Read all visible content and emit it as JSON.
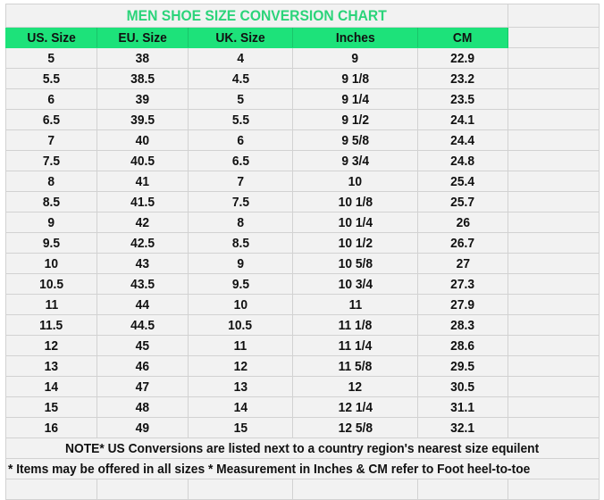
{
  "title": "MEN SHOE SIZE CONVERSION CHART",
  "colors": {
    "header_bg": "#1de27a",
    "title_text": "#2bd47a",
    "cell_bg": "#f2f2f2",
    "grid": "#d2d2d2"
  },
  "headers": [
    "US. Size",
    "EU. Size",
    "UK. Size",
    "Inches",
    "CM"
  ],
  "rows": [
    [
      "5",
      "38",
      "4",
      "9",
      "22.9"
    ],
    [
      "5.5",
      "38.5",
      "4.5",
      "9 1/8",
      "23.2"
    ],
    [
      "6",
      "39",
      "5",
      "9 1/4",
      "23.5"
    ],
    [
      "6.5",
      "39.5",
      "5.5",
      "9 1/2",
      "24.1"
    ],
    [
      "7",
      "40",
      "6",
      "9 5/8",
      "24.4"
    ],
    [
      "7.5",
      "40.5",
      "6.5",
      "9 3/4",
      "24.8"
    ],
    [
      "8",
      "41",
      "7",
      "10",
      "25.4"
    ],
    [
      "8.5",
      "41.5",
      "7.5",
      "10 1/8",
      "25.7"
    ],
    [
      "9",
      "42",
      "8",
      "10 1/4",
      "26"
    ],
    [
      "9.5",
      "42.5",
      "8.5",
      "10 1/2",
      "26.7"
    ],
    [
      "10",
      "43",
      "9",
      "10 5/8",
      "27"
    ],
    [
      "10.5",
      "43.5",
      "9.5",
      "10 3/4",
      "27.3"
    ],
    [
      "11",
      "44",
      "10",
      "11",
      "27.9"
    ],
    [
      "11.5",
      "44.5",
      "10.5",
      "11 1/8",
      "28.3"
    ],
    [
      "12",
      "45",
      "11",
      "11 1/4",
      "28.6"
    ],
    [
      "13",
      "46",
      "12",
      "11 5/8",
      "29.5"
    ],
    [
      "14",
      "47",
      "13",
      "12",
      "30.5"
    ],
    [
      "15",
      "48",
      "14",
      "12 1/4",
      "31.1"
    ],
    [
      "16",
      "49",
      "15",
      "12 5/8",
      "32.1"
    ]
  ],
  "notes": [
    "NOTE* US Conversions are listed next to a country region's nearest size equilent",
    "* Items may be offered in all sizes * Measurement in Inches & CM refer to Foot heel-to-toe"
  ]
}
